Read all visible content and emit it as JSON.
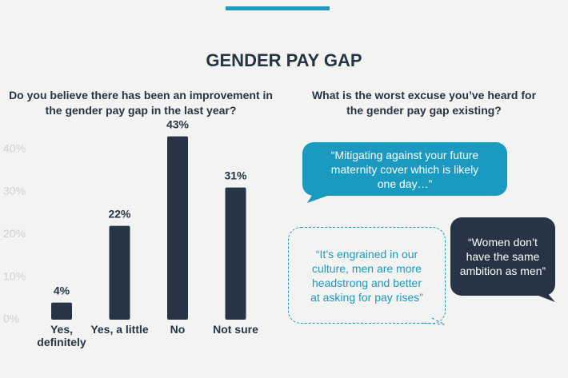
{
  "chart_data": {
    "type": "bar",
    "title": "GENDER PAY GAP",
    "subtitle": "Do you believe there has been an improvement in the gender pay gap in the last year?",
    "categories": [
      "Yes, definitely",
      "Yes, a little",
      "No",
      "Not sure"
    ],
    "values": [
      4,
      22,
      43,
      31
    ],
    "value_labels": [
      "4%",
      "22%",
      "43%",
      "31%"
    ],
    "color": "#263446",
    "ylim": [
      0,
      45
    ],
    "yticks": [
      {
        "value": 0,
        "label": "0%"
      },
      {
        "value": 10,
        "label": "10%"
      },
      {
        "value": 20,
        "label": "20%"
      },
      {
        "value": 30,
        "label": "30%"
      },
      {
        "value": 40,
        "label": "40%"
      }
    ],
    "grid": false
  },
  "excuses": {
    "question": "What is the worst excuse you’ve heard for the gender pay gap existing?",
    "quotes": [
      "“Mitigating against your future maternity cover which is likely one day…”",
      "“Women don’t have the same ambition as men”",
      "“It’s engrained in our culture, men are more headstrong and better at asking for pay rises”"
    ]
  }
}
